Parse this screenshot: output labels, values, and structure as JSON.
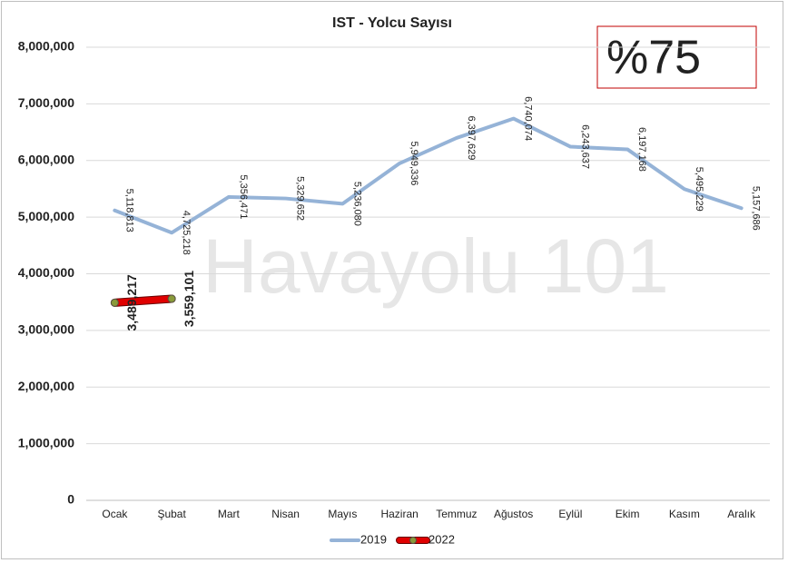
{
  "chart_data": {
    "type": "line",
    "title": "IST - Yolcu Sayısı",
    "annotation": "%75",
    "watermark": "Havayolu 101",
    "categories": [
      "Ocak",
      "Şubat",
      "Mart",
      "Nisan",
      "Mayıs",
      "Haziran",
      "Temmuz",
      "Ağustos",
      "Eylül",
      "Ekim",
      "Kasım",
      "Aralık"
    ],
    "series": [
      {
        "name": "2019",
        "color": "#95b3d7",
        "values": [
          5118813,
          4725218,
          5356471,
          5329652,
          5236080,
          5949336,
          6397629,
          6740074,
          6243637,
          6197168,
          5495229,
          5157686
        ],
        "value_labels": [
          "5,118,813",
          "4,725,218",
          "5,356,471",
          "5,329,652",
          "5,236,080",
          "5,949,336",
          "6,397,629",
          "6,740,074",
          "6,243,637",
          "6,197,168",
          "5,495,229",
          "5,157,686"
        ]
      },
      {
        "name": "2022",
        "color": "#e00000",
        "marker_color": "#8a9a3a",
        "values": [
          3489217,
          3559101,
          null,
          null,
          null,
          null,
          null,
          null,
          null,
          null,
          null,
          null
        ],
        "value_labels": [
          "3,489,217",
          "3,559,101",
          null,
          null,
          null,
          null,
          null,
          null,
          null,
          null,
          null,
          null
        ]
      }
    ],
    "ylim": [
      0,
      8000000
    ],
    "yticks": [
      0,
      {
        "value": 1000000,
        "label": "1,000,000"
      },
      {
        "value": 2000000,
        "label": "2,000,000"
      },
      {
        "value": 3000000,
        "label": "3,000,000"
      },
      {
        "value": 4000000,
        "label": "4,000,000"
      },
      {
        "value": 5000000,
        "label": "5,000,000"
      },
      {
        "value": 6000000,
        "label": "6,000,000"
      },
      {
        "value": 7000000,
        "label": "7,000,000"
      },
      {
        "value": 8000000,
        "label": "8,000,000"
      }
    ],
    "grid": true,
    "legend": "bottom"
  }
}
